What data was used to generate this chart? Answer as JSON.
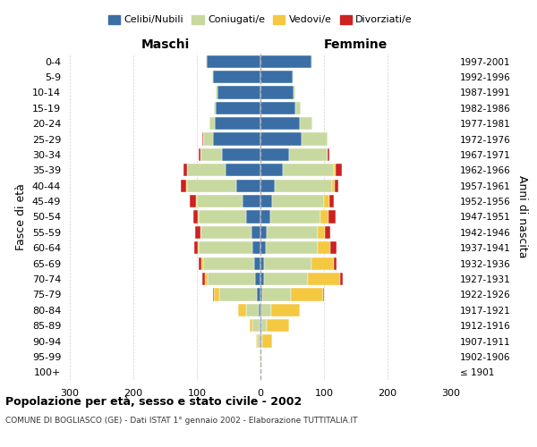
{
  "age_groups": [
    "100+",
    "95-99",
    "90-94",
    "85-89",
    "80-84",
    "75-79",
    "70-74",
    "65-69",
    "60-64",
    "55-59",
    "50-54",
    "45-49",
    "40-44",
    "35-39",
    "30-34",
    "25-29",
    "20-24",
    "15-19",
    "10-14",
    "5-9",
    "0-4"
  ],
  "birth_years": [
    "≤ 1901",
    "1902-1906",
    "1907-1911",
    "1912-1916",
    "1917-1921",
    "1922-1926",
    "1927-1931",
    "1932-1936",
    "1937-1941",
    "1942-1946",
    "1947-1951",
    "1952-1956",
    "1957-1961",
    "1962-1966",
    "1967-1971",
    "1972-1976",
    "1977-1981",
    "1982-1986",
    "1987-1991",
    "1992-1996",
    "1997-2001"
  ],
  "males": {
    "celibi": [
      0,
      0,
      1,
      2,
      3,
      5,
      8,
      10,
      12,
      14,
      22,
      28,
      38,
      55,
      60,
      75,
      72,
      70,
      68,
      75,
      85
    ],
    "coniugati": [
      0,
      1,
      4,
      10,
      20,
      60,
      75,
      80,
      85,
      80,
      75,
      72,
      78,
      60,
      35,
      15,
      8,
      3,
      2,
      1,
      1
    ],
    "vedovi": [
      0,
      0,
      2,
      5,
      12,
      8,
      5,
      3,
      2,
      1,
      1,
      1,
      1,
      0,
      0,
      0,
      0,
      0,
      0,
      0,
      0
    ],
    "divorziati": [
      0,
      0,
      0,
      0,
      0,
      2,
      4,
      4,
      5,
      8,
      8,
      10,
      8,
      6,
      2,
      1,
      0,
      0,
      0,
      0,
      0
    ]
  },
  "females": {
    "nubili": [
      0,
      0,
      1,
      2,
      2,
      3,
      5,
      5,
      8,
      10,
      15,
      18,
      22,
      35,
      45,
      65,
      62,
      55,
      52,
      50,
      80
    ],
    "coniugate": [
      0,
      0,
      2,
      8,
      15,
      45,
      70,
      75,
      82,
      80,
      80,
      82,
      90,
      80,
      60,
      40,
      20,
      8,
      3,
      2,
      1
    ],
    "vedove": [
      0,
      2,
      15,
      35,
      45,
      50,
      50,
      35,
      20,
      12,
      12,
      8,
      5,
      3,
      1,
      0,
      0,
      0,
      0,
      0,
      0
    ],
    "divorziate": [
      0,
      0,
      0,
      0,
      0,
      2,
      5,
      5,
      10,
      8,
      12,
      8,
      6,
      10,
      3,
      1,
      0,
      0,
      0,
      0,
      0
    ]
  },
  "colors": {
    "celibi": "#3A6EA5",
    "coniugati": "#C8D9A0",
    "vedovi": "#F5C842",
    "divorziati": "#CC2222"
  },
  "legend_labels": [
    "Celibi/Nubili",
    "Coniugati/e",
    "Vedovi/e",
    "Divorziati/e"
  ],
  "title": "Popolazione per età, sesso e stato civile - 2002",
  "subtitle": "COMUNE DI BOGLIASCO (GE) - Dati ISTAT 1° gennaio 2002 - Elaborazione TUTTITALIA.IT",
  "ylabel_left": "Fasce di età",
  "ylabel_right": "Anni di nascita",
  "xlabel_left": "Maschi",
  "xlabel_right": "Femmine",
  "xlim": 300,
  "bg_color": "#ffffff",
  "grid_color": "#cccccc"
}
